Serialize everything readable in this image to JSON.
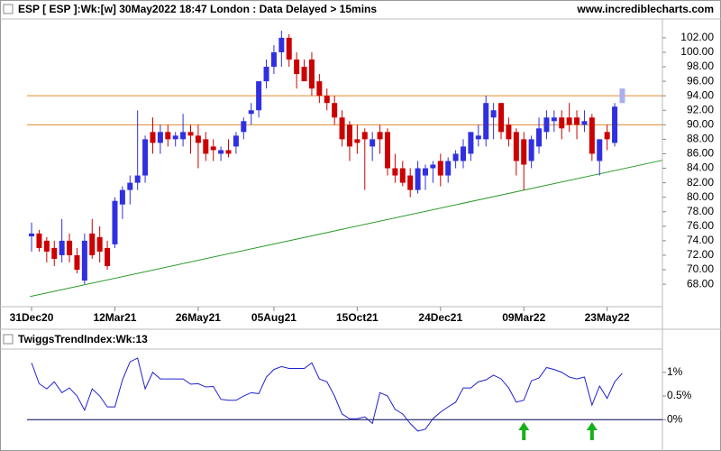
{
  "chart_data": [
    {
      "type": "candlestick",
      "title": "ESP [ ESP ]:Wk:[w]  30May2022 18:47 London : Data Delayed > 15mins",
      "source": "www.incrediblecharts.com",
      "categories": [
        "31Dec20",
        null,
        null,
        null,
        null,
        null,
        null,
        null,
        null,
        null,
        null,
        "12Mar21",
        null,
        null,
        null,
        null,
        null,
        null,
        null,
        null,
        null,
        null,
        "26May21",
        null,
        null,
        null,
        null,
        null,
        null,
        null,
        null,
        null,
        "05Aug21",
        null,
        null,
        null,
        null,
        null,
        null,
        null,
        null,
        null,
        null,
        "15Oct21",
        null,
        null,
        null,
        null,
        null,
        null,
        null,
        null,
        null,
        null,
        "24Dec21",
        null,
        null,
        null,
        null,
        null,
        null,
        null,
        null,
        null,
        null,
        "09Mar22",
        null,
        null,
        null,
        null,
        null,
        null,
        null,
        null,
        null,
        null,
        "23May22",
        null,
        null
      ],
      "open": [
        74.6,
        75,
        74,
        73,
        72,
        74,
        72,
        68.5,
        75,
        74.5,
        73,
        73.5,
        79,
        81,
        82,
        83,
        89,
        87.5,
        89,
        88,
        88,
        89,
        88.5,
        88,
        87,
        86,
        86.5,
        87,
        89,
        91.5,
        92,
        96,
        98,
        100,
        102,
        99,
        98,
        99,
        96,
        94,
        93,
        91,
        90,
        88,
        89,
        87,
        89,
        89,
        84,
        84,
        83,
        81,
        83,
        84,
        85,
        83,
        85,
        85,
        86,
        88,
        88,
        91,
        93,
        90,
        89,
        88,
        85,
        87,
        89,
        90.5,
        91,
        91,
        91,
        90,
        91,
        85,
        89,
        87.5,
        93
      ],
      "high": [
        76.5,
        75.5,
        74.5,
        74,
        77,
        75,
        73,
        75,
        77,
        76,
        74,
        80,
        81.5,
        83,
        92,
        88.5,
        91,
        90,
        90,
        89,
        91.5,
        90,
        90,
        89,
        88,
        87,
        88,
        89,
        91,
        93,
        96,
        99,
        101,
        103,
        102.5,
        100,
        99,
        100,
        97,
        95,
        94,
        92,
        90.5,
        90,
        89.5,
        89,
        90,
        89.5,
        86,
        85,
        84,
        85,
        84.5,
        85,
        86,
        85.5,
        86.5,
        88,
        89,
        90,
        94,
        93,
        93,
        91,
        89.5,
        89,
        88.5,
        91,
        92,
        92,
        92,
        93,
        92,
        92,
        91.5,
        88,
        90,
        93,
        95
      ],
      "low": [
        72.5,
        72.5,
        71,
        70.5,
        71,
        71,
        69.5,
        68,
        71.5,
        71,
        70,
        73,
        77,
        79,
        81,
        82,
        86,
        86,
        87,
        87,
        87,
        86,
        84,
        85,
        85,
        85,
        85.5,
        86,
        88,
        90,
        91,
        95,
        97,
        98,
        98,
        95,
        96,
        94,
        93,
        92,
        90,
        87,
        85,
        86,
        81,
        85,
        86,
        83,
        82,
        81.5,
        80,
        80.5,
        81,
        82,
        81.5,
        82,
        84,
        84,
        85,
        87,
        87,
        88,
        88,
        87,
        83,
        81,
        84,
        86,
        88,
        89,
        88,
        89,
        88,
        89,
        85,
        83,
        86.5,
        87,
        93
      ],
      "close": [
        75,
        73,
        72.5,
        71.5,
        74,
        72,
        70,
        74,
        72,
        72.5,
        70.5,
        79.5,
        81,
        82,
        83,
        88,
        87.5,
        89,
        88,
        88.5,
        89,
        88.5,
        87.5,
        86,
        86.5,
        86.5,
        86,
        88.5,
        90.5,
        92,
        96,
        98,
        100,
        102,
        99,
        97,
        96,
        95,
        94,
        93,
        91,
        88,
        87,
        87.5,
        88,
        88,
        88,
        84,
        83,
        82,
        81,
        84,
        84,
        84.5,
        83,
        85,
        86,
        87,
        89,
        88.5,
        93,
        92,
        89,
        88,
        85,
        84.5,
        88,
        89.5,
        91,
        91,
        89.5,
        90,
        90,
        90.5,
        86,
        88,
        88,
        92.5,
        95
      ],
      "up_color": "#3030e0",
      "down_color": "#cc0000",
      "last_color": "#a8aef0",
      "ylim": [
        64.9,
        104.6
      ],
      "xlim": [
        -0.6,
        83.3
      ],
      "yticks": [
        {
          "value": 102,
          "label": "102.00"
        },
        {
          "value": 100,
          "label": "100.00"
        },
        {
          "value": 98,
          "label": "98.00"
        },
        {
          "value": 96,
          "label": "96.00"
        },
        {
          "value": 94,
          "label": "94.00"
        },
        {
          "value": 92,
          "label": "92.00"
        },
        {
          "value": 90,
          "label": "90.00"
        },
        {
          "value": 88,
          "label": "88.00"
        },
        {
          "value": 86,
          "label": "86.00"
        },
        {
          "value": 84,
          "label": "84.00"
        },
        {
          "value": 82,
          "label": "82.00"
        },
        {
          "value": 80,
          "label": "80.00"
        },
        {
          "value": 78,
          "label": "78.00"
        },
        {
          "value": 76,
          "label": "76.00"
        },
        {
          "value": 74,
          "label": "74.00"
        },
        {
          "value": 72,
          "label": "72.00"
        },
        {
          "value": 70,
          "label": "70.00"
        },
        {
          "value": 68,
          "label": "68.00"
        }
      ],
      "hlines": [
        94,
        90
      ],
      "hline_color": "#e08a2c",
      "trendline": {
        "x": [
          -0.2,
          83.3
        ],
        "y": [
          66.3,
          85.1
        ],
        "color": "#2a9a2a"
      }
    },
    {
      "type": "line",
      "title": "TwiggsTrendIndex:Wk:13",
      "values": [
        1.2,
        0.76,
        0.65,
        0.8,
        0.57,
        0.67,
        0.5,
        0.2,
        0.65,
        0.5,
        0.27,
        0.27,
        0.84,
        1.22,
        1.3,
        0.65,
        1.0,
        0.86,
        0.86,
        0.86,
        0.86,
        0.75,
        0.76,
        0.69,
        0.7,
        0.43,
        0.41,
        0.41,
        0.5,
        0.57,
        0.55,
        0.9,
        1.06,
        1.12,
        1.08,
        1.08,
        1.08,
        1.2,
        0.86,
        0.8,
        0.5,
        0.12,
        0.02,
        0.02,
        0.06,
        -0.08,
        0.57,
        0.5,
        0.22,
        0.12,
        -0.08,
        -0.24,
        -0.2,
        0.02,
        0.16,
        0.27,
        0.37,
        0.67,
        0.67,
        0.8,
        0.84,
        0.94,
        0.86,
        0.67,
        0.37,
        0.41,
        0.82,
        0.88,
        1.1,
        1.06,
        1.0,
        0.9,
        0.86,
        0.9,
        0.31,
        0.71,
        0.45,
        0.8,
        0.98
      ],
      "color": "#2020d0",
      "ylim": [
        -0.47,
        1.49
      ],
      "xlim": [
        -0.6,
        83.3
      ],
      "yticks": [
        {
          "value": 1,
          "label": "1%"
        },
        {
          "value": 0.5,
          "label": "0.5%"
        },
        {
          "value": 0,
          "label": "0%"
        }
      ],
      "zero_line": 0,
      "signal_arrows": [
        65,
        74
      ],
      "arrow_color": "#18b018"
    }
  ]
}
